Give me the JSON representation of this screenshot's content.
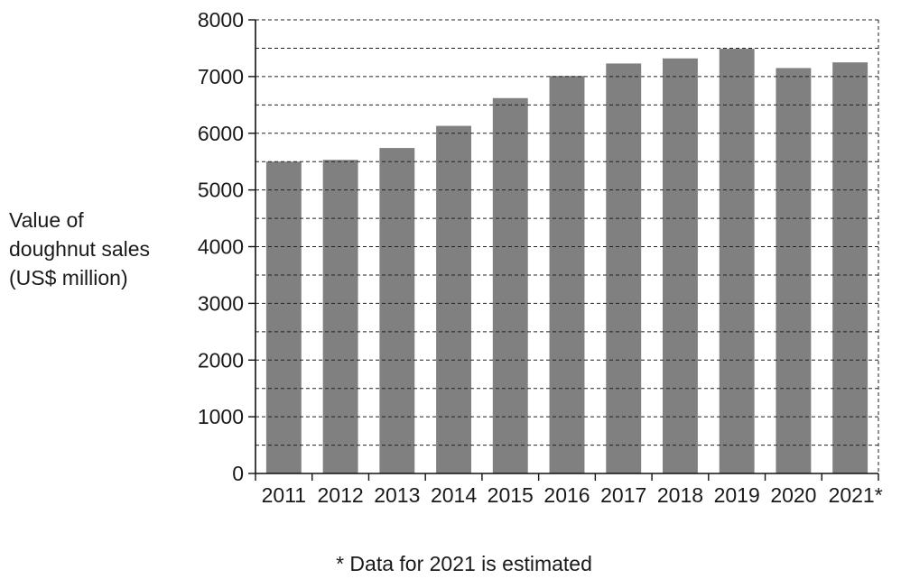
{
  "chart_data": {
    "type": "bar",
    "categories": [
      "2011",
      "2012",
      "2013",
      "2014",
      "2015",
      "2016",
      "2017",
      "2018",
      "2019",
      "2020",
      "2021*"
    ],
    "values": [
      5500,
      5530,
      5740,
      6130,
      6620,
      7010,
      7230,
      7320,
      7490,
      7150,
      7250
    ],
    "ylabel_lines": [
      "Value of",
      "doughnut sales",
      "(US$ million)"
    ],
    "xlabel": "",
    "ylim": [
      0,
      8000
    ],
    "yticks": [
      0,
      1000,
      2000,
      3000,
      4000,
      5000,
      6000,
      7000,
      8000
    ],
    "grid_step": 500,
    "grid": true,
    "bar_color": "#808080",
    "footnote": "* Data for 2021 is estimated"
  }
}
